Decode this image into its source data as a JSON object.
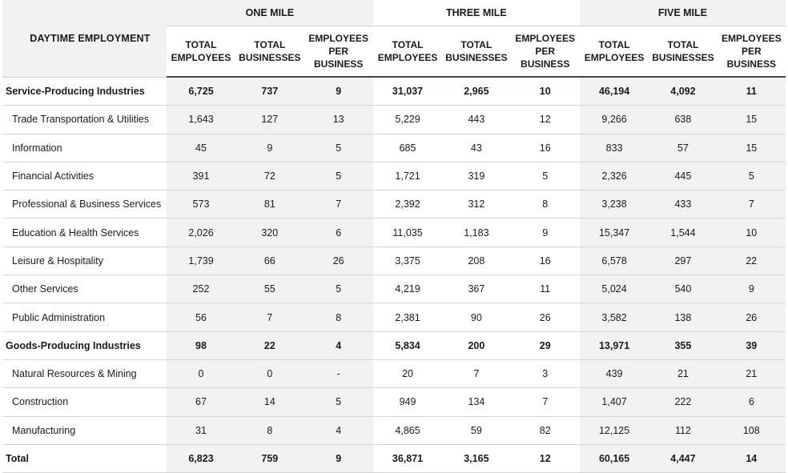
{
  "table": {
    "title": "DAYTIME EMPLOYMENT",
    "groups": [
      "ONE MILE",
      "THREE MILE",
      "FIVE MILE"
    ],
    "columns": [
      [
        "TOTAL",
        "EMPLOYEES"
      ],
      [
        "TOTAL",
        "BUSINESSES"
      ],
      [
        "EMPLOYEES",
        "PER",
        "BUSINESS"
      ]
    ],
    "rows": [
      {
        "label": "Service-Producing Industries",
        "bold": true,
        "values": [
          "6,725",
          "737",
          "9",
          "31,037",
          "2,965",
          "10",
          "46,194",
          "4,092",
          "11"
        ]
      },
      {
        "label": "Trade Transportation & Utilities",
        "bold": false,
        "values": [
          "1,643",
          "127",
          "13",
          "5,229",
          "443",
          "12",
          "9,266",
          "638",
          "15"
        ]
      },
      {
        "label": "Information",
        "bold": false,
        "values": [
          "45",
          "9",
          "5",
          "685",
          "43",
          "16",
          "833",
          "57",
          "15"
        ]
      },
      {
        "label": "Financial Activities",
        "bold": false,
        "values": [
          "391",
          "72",
          "5",
          "1,721",
          "319",
          "5",
          "2,326",
          "445",
          "5"
        ]
      },
      {
        "label": "Professional & Business Services",
        "bold": false,
        "values": [
          "573",
          "81",
          "7",
          "2,392",
          "312",
          "8",
          "3,238",
          "433",
          "7"
        ]
      },
      {
        "label": "Education & Health Services",
        "bold": false,
        "values": [
          "2,026",
          "320",
          "6",
          "11,035",
          "1,183",
          "9",
          "15,347",
          "1,544",
          "10"
        ]
      },
      {
        "label": "Leisure & Hospitality",
        "bold": false,
        "values": [
          "1,739",
          "66",
          "26",
          "3,375",
          "208",
          "16",
          "6,578",
          "297",
          "22"
        ]
      },
      {
        "label": "Other Services",
        "bold": false,
        "values": [
          "252",
          "55",
          "5",
          "4,219",
          "367",
          "11",
          "5,024",
          "540",
          "9"
        ]
      },
      {
        "label": "Public Administration",
        "bold": false,
        "values": [
          "56",
          "7",
          "8",
          "2,381",
          "90",
          "26",
          "3,582",
          "138",
          "26"
        ]
      },
      {
        "label": "Goods-Producing Industries",
        "bold": true,
        "values": [
          "98",
          "22",
          "4",
          "5,834",
          "200",
          "29",
          "13,971",
          "355",
          "39"
        ]
      },
      {
        "label": "Natural Resources & Mining",
        "bold": false,
        "values": [
          "0",
          "0",
          "-",
          "20",
          "7",
          "3",
          "439",
          "21",
          "21"
        ]
      },
      {
        "label": "Construction",
        "bold": false,
        "values": [
          "67",
          "14",
          "5",
          "949",
          "134",
          "7",
          "1,407",
          "222",
          "6"
        ]
      },
      {
        "label": "Manufacturing",
        "bold": false,
        "values": [
          "31",
          "8",
          "4",
          "4,865",
          "59",
          "82",
          "12,125",
          "112",
          "108"
        ]
      },
      {
        "label": "Total",
        "bold": true,
        "values": [
          "6,823",
          "759",
          "9",
          "36,871",
          "3,165",
          "12",
          "60,165",
          "4,447",
          "14"
        ]
      }
    ]
  }
}
